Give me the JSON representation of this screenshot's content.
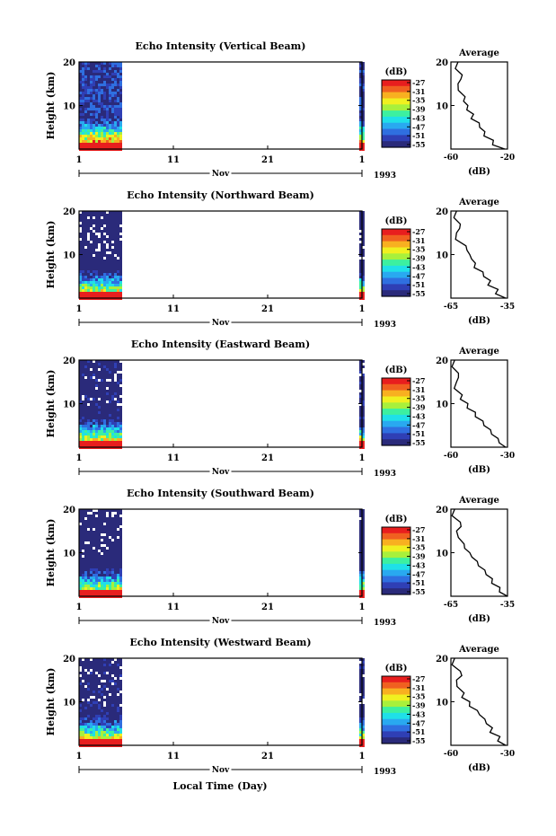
{
  "panels": [
    {
      "title": "Echo Intensity (Vertical Beam)",
      "year": "1993",
      "avg_xticks": [
        "-60",
        "-20"
      ]
    },
    {
      "title": "Echo Intensity (Northward Beam)",
      "year": "1993",
      "avg_xticks": [
        "-65",
        "-35"
      ]
    },
    {
      "title": "Echo Intensity (Eastward Beam)",
      "year": "1993",
      "avg_xticks": [
        "-60",
        "-30"
      ]
    },
    {
      "title": "Echo Intensity (Southward Beam)",
      "year": "1993",
      "avg_xticks": [
        "-65",
        "-35"
      ]
    },
    {
      "title": "Echo Intensity (Westward Beam)",
      "year": "1993",
      "avg_xticks": [
        "-60",
        "-30"
      ]
    }
  ],
  "ylabel": "Height (km)",
  "yticks": [
    "20",
    "10"
  ],
  "xticks": [
    "1",
    "11",
    "21",
    "1"
  ],
  "month_label": "Nov",
  "xlabel": "Local Time (Day)",
  "colorbar_unit": "(dB)",
  "colorbar_ticks": [
    "-27",
    "-31",
    "-35",
    "-39",
    "-43",
    "-47",
    "-51",
    "-55"
  ],
  "average_title": "Average",
  "average_xlabel": "(dB)",
  "colors": {
    "cmap": [
      "#2a2a7a",
      "#2f3fb5",
      "#2f6fe0",
      "#29a9f0",
      "#1fe0e8",
      "#3cf0a0",
      "#a8f03c",
      "#f0f020",
      "#f8b020",
      "#f06020",
      "#e81e1e"
    ]
  },
  "chart_data": {
    "type": "heatmap",
    "ylim_km": [
      0,
      20
    ],
    "x_range_days": [
      1,
      31
    ],
    "data_coverage_days": [
      [
        1,
        5.5
      ],
      [
        30.7,
        31
      ]
    ],
    "colorbar_range_db": [
      -55,
      -27
    ],
    "average_profiles": [
      {
        "beam": "Vertical",
        "xlim": [
          -60,
          -20
        ],
        "height_km": [
          20,
          17,
          15,
          12,
          10,
          8,
          6,
          4,
          2,
          0
        ],
        "db": [
          -55,
          -52,
          -55,
          -50,
          -48,
          -44,
          -40,
          -36,
          -30,
          -22
        ]
      },
      {
        "beam": "Northward",
        "xlim": [
          -65,
          -35
        ],
        "height_km": [
          20,
          17,
          15,
          12,
          10,
          8,
          6,
          4,
          2,
          0
        ],
        "db": [
          -62,
          -60,
          -62,
          -57,
          -55,
          -52,
          -48,
          -44,
          -40,
          -36
        ]
      },
      {
        "beam": "Eastward",
        "xlim": [
          -60,
          -30
        ],
        "height_km": [
          20,
          17,
          15,
          12,
          10,
          8,
          6,
          4,
          2,
          0
        ],
        "db": [
          -58,
          -56,
          -57,
          -54,
          -51,
          -47,
          -43,
          -39,
          -35,
          -31
        ]
      },
      {
        "beam": "Southward",
        "xlim": [
          -65,
          -35
        ],
        "height_km": [
          20,
          17,
          15,
          12,
          10,
          8,
          6,
          4,
          2,
          0
        ],
        "db": [
          -63,
          -60,
          -62,
          -58,
          -55,
          -51,
          -47,
          -43,
          -39,
          -35
        ]
      },
      {
        "beam": "Westward",
        "xlim": [
          -60,
          -30
        ],
        "height_km": [
          20,
          17,
          15,
          12,
          10,
          8,
          6,
          4,
          2,
          0
        ],
        "db": [
          -58,
          -55,
          -57,
          -53,
          -50,
          -46,
          -42,
          -38,
          -34,
          -31
        ]
      }
    ]
  }
}
